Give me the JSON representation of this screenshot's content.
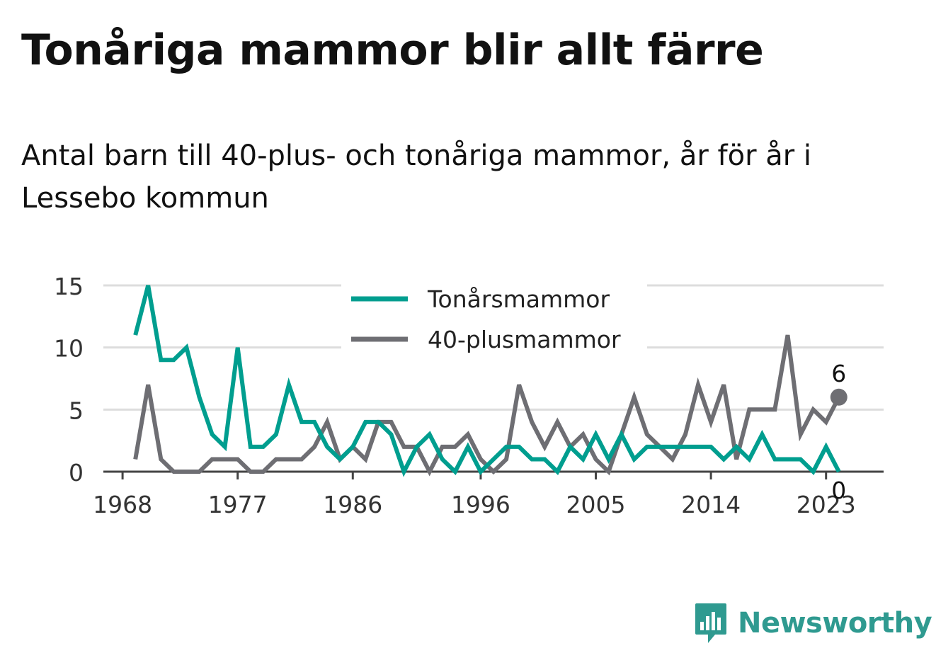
{
  "title": "Tonåriga mammor blir allt färre",
  "subtitle": "Antal barn till 40-plus- och tonåriga mammor, år för år i Lessebo kommun",
  "brand": {
    "name": "Newsworthy",
    "icon": "newsworthy-logo-icon",
    "color": "#2f9a90"
  },
  "chart_data": {
    "type": "line",
    "x": [
      1969,
      1970,
      1971,
      1972,
      1973,
      1974,
      1975,
      1976,
      1977,
      1978,
      1979,
      1980,
      1981,
      1982,
      1983,
      1984,
      1985,
      1986,
      1987,
      1988,
      1989,
      1990,
      1991,
      1992,
      1993,
      1994,
      1995,
      1996,
      1997,
      1998,
      1999,
      2000,
      2001,
      2002,
      2003,
      2004,
      2005,
      2006,
      2007,
      2008,
      2009,
      2010,
      2011,
      2012,
      2013,
      2014,
      2015,
      2016,
      2017,
      2018,
      2019,
      2020,
      2021,
      2022,
      2023,
      2024
    ],
    "xticks": [
      1968,
      1977,
      1986,
      1996,
      2005,
      2014,
      2023
    ],
    "yticks": [
      0,
      5,
      10,
      15
    ],
    "ylim": [
      0,
      15
    ],
    "grid": true,
    "legend_position": "top-center",
    "series": [
      {
        "name": "Tonårsmammor",
        "color": "#009e8f",
        "values": [
          11,
          15,
          9,
          9,
          10,
          6,
          3,
          2,
          10,
          2,
          2,
          3,
          7,
          4,
          4,
          2,
          1,
          2,
          4,
          4,
          3,
          0,
          2,
          3,
          1,
          0,
          2,
          0,
          1,
          2,
          2,
          1,
          1,
          0,
          2,
          1,
          3,
          1,
          3,
          1,
          2,
          2,
          2,
          2,
          2,
          2,
          1,
          2,
          1,
          3,
          1,
          1,
          1,
          0,
          2,
          0
        ],
        "end_label": "0"
      },
      {
        "name": "40-plusmammor",
        "color": "#6e6e73",
        "values": [
          1,
          7,
          1,
          0,
          0,
          0,
          1,
          1,
          1,
          0,
          0,
          1,
          1,
          1,
          2,
          4,
          1,
          2,
          1,
          4,
          4,
          2,
          2,
          0,
          2,
          2,
          3,
          1,
          0,
          1,
          7,
          4,
          2,
          4,
          2,
          3,
          1,
          0,
          3,
          6,
          3,
          2,
          1,
          3,
          7,
          4,
          7,
          1,
          5,
          5,
          5,
          11,
          3,
          5,
          4,
          6
        ],
        "end_label": "6"
      }
    ]
  }
}
